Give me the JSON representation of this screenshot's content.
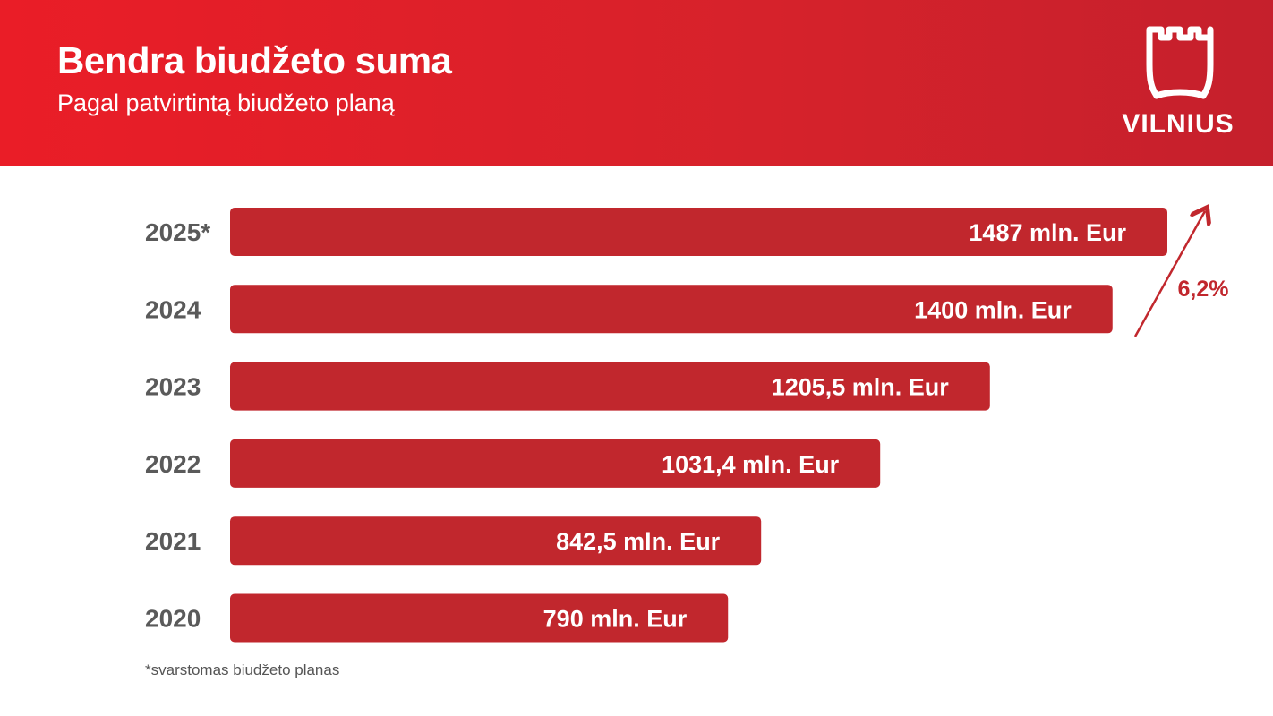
{
  "header": {
    "title": "Bendra biudžeto suma",
    "subtitle": "Pagal patvirtintą biudžeto planą",
    "logo_text": "VILNIUS"
  },
  "colors": {
    "header_red": "#e31e26",
    "bar": "#c1272d",
    "label_grey": "#5a5a5a",
    "white": "#ffffff"
  },
  "chart_data": {
    "type": "bar",
    "orientation": "horizontal",
    "categories": [
      "2025*",
      "2024",
      "2023",
      "2022",
      "2021",
      "2020"
    ],
    "values": [
      1487,
      1400,
      1205.5,
      1031.4,
      842.5,
      790
    ],
    "value_labels": [
      "1487 mln. Eur",
      "1400 mln. Eur",
      "1205,5 mln. Eur",
      "1031,4 mln. Eur",
      "842,5 mln. Eur",
      "790 mln. Eur"
    ],
    "annotation": {
      "text": "6,2%",
      "from": "2024",
      "to": "2025*"
    },
    "footnote": "*svarstomas biudžeto planas"
  }
}
